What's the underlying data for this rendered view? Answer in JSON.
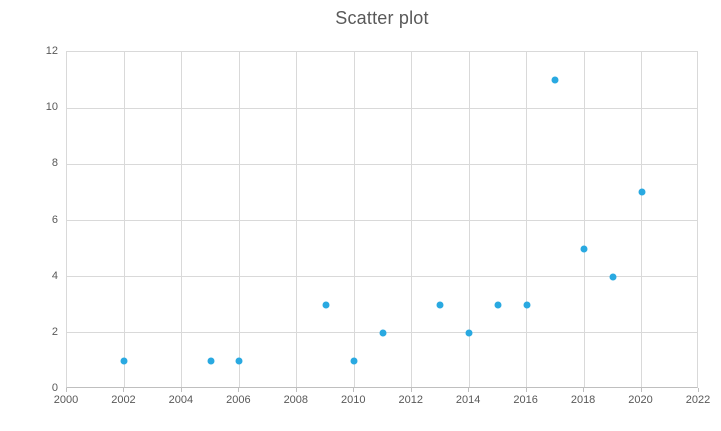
{
  "chart_data": {
    "type": "scatter",
    "title": "Scatter plot",
    "x": [
      2002,
      2005,
      2006,
      2009,
      2010,
      2011,
      2013,
      2014,
      2015,
      2016,
      2017,
      2018,
      2019,
      2020
    ],
    "y": [
      1,
      1,
      1,
      3,
      1,
      2,
      3,
      2,
      3,
      3,
      11,
      5,
      4,
      7
    ],
    "xlim": [
      2000,
      2022
    ],
    "ylim": [
      0,
      12
    ],
    "x_ticks": [
      2000,
      2002,
      2004,
      2006,
      2008,
      2010,
      2012,
      2014,
      2016,
      2018,
      2020,
      2022
    ],
    "y_ticks": [
      0,
      2,
      4,
      6,
      8,
      10,
      12
    ],
    "xlabel": "",
    "ylabel": "",
    "grid": true,
    "legend": false,
    "marker_color": "#29a9e1",
    "grid_color": "#d9d9d9",
    "axis_line_color": "#bfbfbf",
    "axis_text_color": "#595959",
    "title_color": "#595959"
  }
}
